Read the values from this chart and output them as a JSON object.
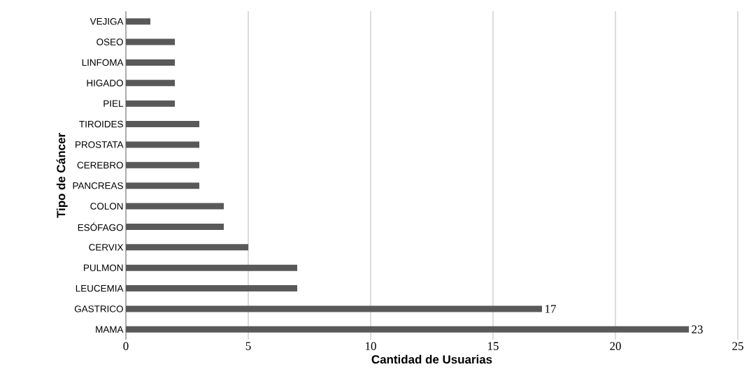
{
  "chart_data": {
    "type": "bar",
    "orientation": "horizontal",
    "xlabel": "Cantidad de Usuarias",
    "ylabel": "Tipo de Cáncer",
    "categories": [
      "VEJIGA",
      "OSEO",
      "LINFOMA",
      "HIGADO",
      "PIEL",
      "TIROIDES",
      "PROSTATA",
      "CEREBRO",
      "PANCREAS",
      "COLON",
      "ESÓFAGO",
      "CERVIX",
      "PULMON",
      "LEUCEMIA",
      "GASTRICO",
      "MAMA"
    ],
    "values": [
      1,
      2,
      2,
      2,
      2,
      3,
      3,
      3,
      3,
      4,
      4,
      5,
      7,
      7,
      17,
      23
    ],
    "value_labels": [
      null,
      null,
      null,
      null,
      null,
      null,
      null,
      null,
      null,
      null,
      null,
      null,
      null,
      null,
      "17",
      "23"
    ],
    "color": "#595959",
    "xlim": [
      0,
      25
    ],
    "xticks": [
      0,
      5,
      10,
      15,
      20,
      25
    ],
    "grid": "x"
  }
}
